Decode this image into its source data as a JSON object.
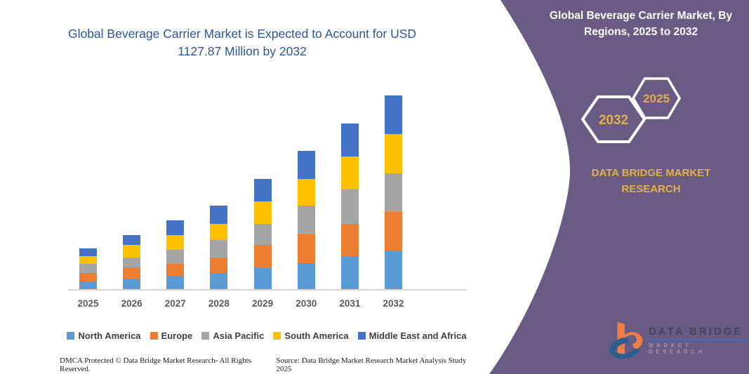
{
  "title": {
    "line1": "Global Beverage Carrier Market is Expected to Account for USD",
    "line2": "1127.87 Million by 2032"
  },
  "side_panel": {
    "heading_lines": [
      "Global Beverage Carrier Market, By",
      "Regions, 2025 to 2032"
    ],
    "hexagons": [
      {
        "label": "2032"
      },
      {
        "label": "2025"
      }
    ],
    "brand_lines": [
      "DATA BRIDGE MARKET",
      "RESEARCH"
    ]
  },
  "chart_data": {
    "type": "bar",
    "stacked": true,
    "unit": "USD Million",
    "title": "Global Beverage Carrier Market, By Regions, 2025 to 2032",
    "categories": [
      "2025",
      "2026",
      "2027",
      "2028",
      "2029",
      "2030",
      "2031",
      "2032"
    ],
    "series": [
      {
        "name": "North America",
        "color": "#5B9BD5",
        "values": [
          49,
          66,
          80,
          99,
          126,
          154,
          191,
          223
        ]
      },
      {
        "name": "Europe",
        "color": "#ED7D31",
        "values": [
          48,
          64,
          73,
          90,
          133,
          167,
          194,
          229
        ]
      },
      {
        "name": "Asia Pacific",
        "color": "#A5A5A5",
        "values": [
          52,
          58,
          81,
          101,
          125,
          166,
          197,
          225
        ]
      },
      {
        "name": "South America",
        "color": "#FFC000",
        "values": [
          48,
          73,
          86,
          92,
          130,
          156,
          190,
          227
        ]
      },
      {
        "name": "Middle East and Africa",
        "color": "#4472C4",
        "values": [
          44,
          58,
          84,
          106,
          129,
          164,
          195,
          224
        ]
      }
    ],
    "totals_estimated": [
      241,
      319,
      404,
      488,
      643,
      807,
      967,
      1128
    ],
    "stated_2032_total": 1127.87,
    "xlabel": "",
    "ylabel": "",
    "ylim": [
      0,
      1180
    ],
    "y_axis_labels_visible": false,
    "grid": false,
    "legend_position": "bottom"
  },
  "footer": {
    "left": "DMCA Protected © Data Bridge Market Research-  All Rights Reserved.",
    "right": "Source: Data Bridge Market Research  Market Analysis Study 2025"
  },
  "logo": {
    "title": "DATA BRIDGE",
    "subtitle": "MARKET RESEARCH"
  },
  "colors": {
    "title_text": "#2F5496",
    "panel_purple": "#6A5B84",
    "gold_accent": "#E2AF4B",
    "axis_line": "#D6D6D6",
    "legend_text": "#404040"
  }
}
